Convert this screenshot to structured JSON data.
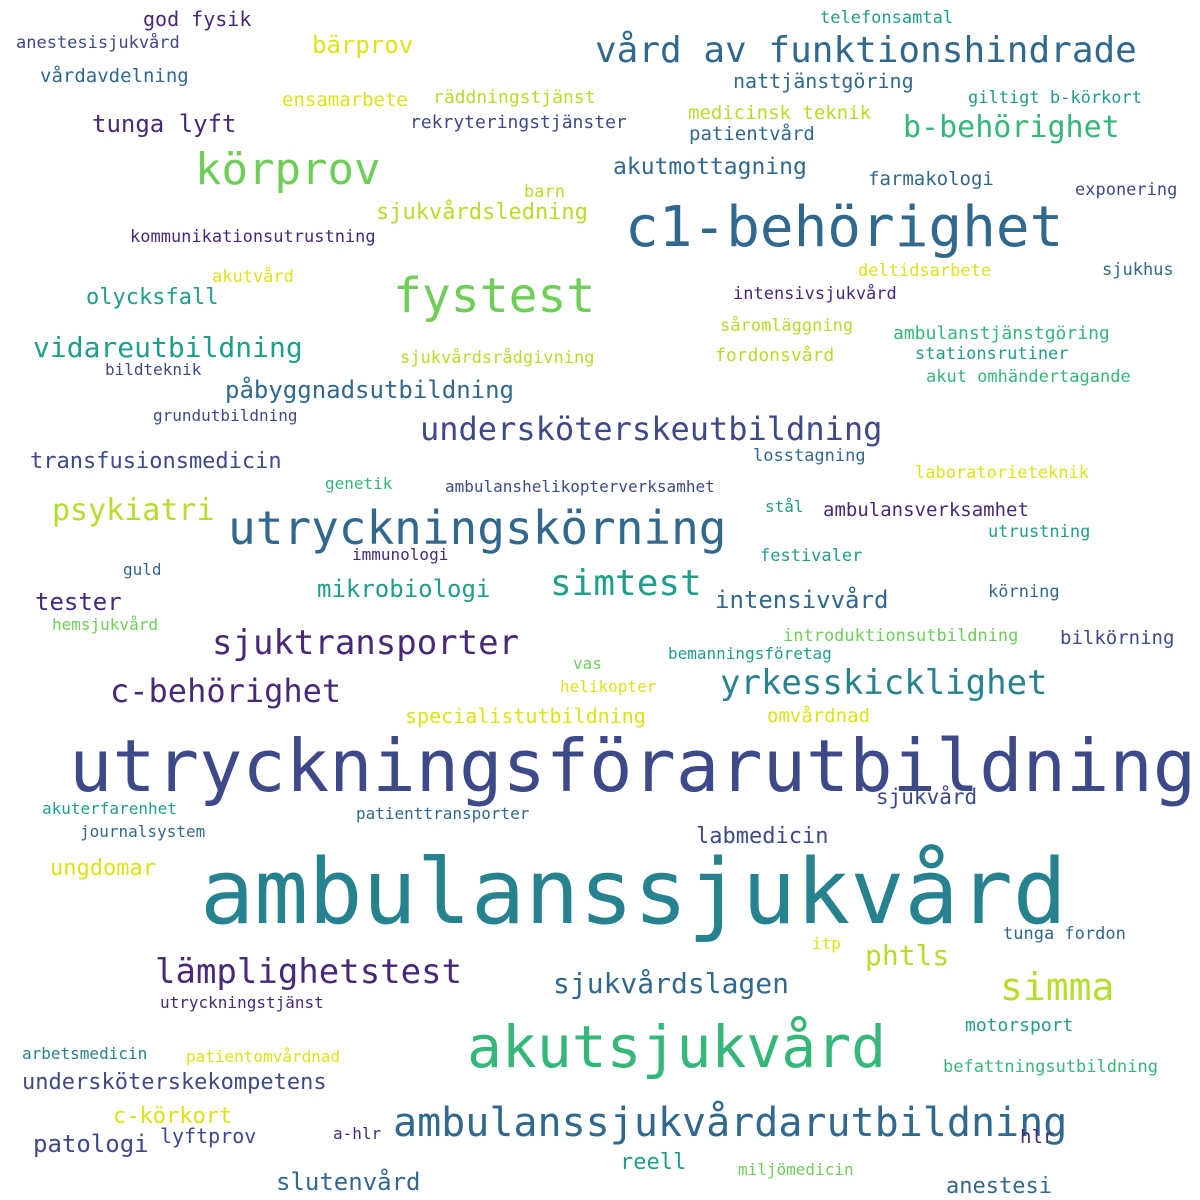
{
  "word_cloud": {
    "palette": {
      "dark_purple": "#482878",
      "indigo": "#3e4989",
      "blue": "#31688e",
      "teal": "#26828e",
      "green_teal": "#1f9e89",
      "green": "#35b779",
      "light_green": "#6ece58",
      "lime": "#b5de2b",
      "yellow": "#dde318",
      "deep_purple": "#440154"
    },
    "words": [
      "ambulanssjukvård",
      "utryckningsförarutbildning",
      "c1-behörighet",
      "akutsjukvård",
      "utryckningskörning",
      "vård av funktionshindrade",
      "körprov",
      "fystest",
      "ambulanssjukvårdarutbildning",
      "sjuktransporter",
      "yrkesskicklighet",
      "lämplighetstest",
      "simma",
      "simtest",
      "c-behörighet",
      "undersköterskeutbildning",
      "b-behörighet",
      "psykiatri",
      "vidareutbildning",
      "sjukvårdslagen",
      "påbyggnadsutbildning",
      "undersköterskekompetens",
      "phtls",
      "intensivvård",
      "tester",
      "transfusionsmedicin",
      "mikrobiologi",
      "tunga lyft",
      "bärprov",
      "akutmottagning",
      "patologi",
      "slutenvård",
      "olycksfall",
      "sjukvårdsledning",
      "anestesi",
      "sjukvård",
      "ungdomar",
      "labmedicin",
      "c-körkort",
      "reell",
      "lyftprov",
      "nattjänstgöring",
      "ambulansverksamhet",
      "specialistutbildning",
      "farmakologi",
      "patientvård",
      "god fysik",
      "vårdavdelning",
      "ensamarbete",
      "medicinsk teknik",
      "omvårdnad",
      "räddningstjänst",
      "rekryteringstjänster",
      "bilkörning",
      "hlr",
      "ambulanstjänstgöring",
      "fordonsvård",
      "motorsport",
      "tunga fordon",
      "körning",
      "befattningsutbildning",
      "akut omhändertagande",
      "festivaler",
      "losstagning",
      "anestesisjukvård",
      "introduktionsutbildning",
      "utrustning",
      "giltigt b-körkort",
      "telefonsamtal",
      "sjukhus",
      "exponering",
      "intensivsjukvård",
      "deltidsarbete",
      "såromläggning",
      "stationsrutiner",
      "kommunikationsutrustning",
      "akutvård",
      "barn",
      "sjukvårdsrådgivning",
      "bildteknik",
      "grundutbildning",
      "laboratorieteknik",
      "genetik",
      "ambulanshelikopterverksamhet",
      "stål",
      "immunologi",
      "guld",
      "hemsjukvård",
      "bemanningsföretag",
      "vas",
      "helikopter",
      "akuterfarenhet",
      "journalsystem",
      "patienttransporter",
      "itp",
      "utryckningstjänst",
      "arbetsmedicin",
      "patientomvårdnad",
      "a-hlr",
      "miljömedicin"
    ]
  }
}
